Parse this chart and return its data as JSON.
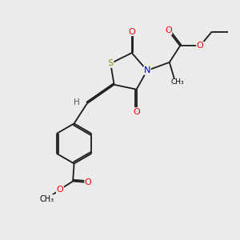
{
  "bg_color": "#ebebeb",
  "atom_colors": {
    "S": "#8b8b00",
    "N": "#0000cc",
    "O": "#ff0000",
    "C": "#000000",
    "H": "#555555"
  },
  "bond_color": "#1a1a1a",
  "bond_width": 1.3,
  "figsize": [
    3.0,
    3.0
  ],
  "dpi": 100
}
